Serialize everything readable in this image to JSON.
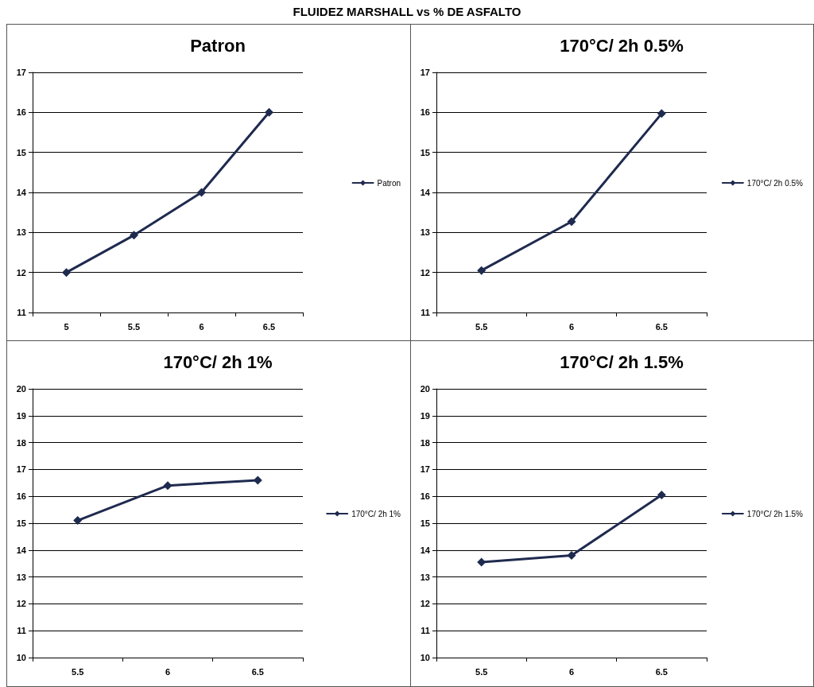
{
  "chart_data": [
    {
      "type": "other",
      "title": "FLUIDEZ MARSHALL vs % DE ASFALTO"
    },
    {
      "type": "line",
      "title": "Patron",
      "categories": [
        "5",
        "5.5",
        "6",
        "6.5"
      ],
      "series": [
        {
          "name": "Patron",
          "color": "#1f2a4f",
          "values": [
            12,
            12.93,
            14,
            16
          ]
        }
      ],
      "ylim": [
        11,
        17
      ],
      "yticks": [
        11,
        12,
        13,
        14,
        15,
        16,
        17
      ],
      "grid": "y",
      "legend": "right",
      "marker": "diamond",
      "line_style": "solid"
    },
    {
      "type": "line",
      "title": "170°C/ 2h 0.5%",
      "categories": [
        "5.5",
        "6",
        "6.5"
      ],
      "series": [
        {
          "name": "170°C/ 2h 0.5%",
          "color": "#1f2a4f",
          "values": [
            12.05,
            13.27,
            15.97
          ]
        }
      ],
      "ylim": [
        11,
        17
      ],
      "yticks": [
        11,
        12,
        13,
        14,
        15,
        16,
        17
      ],
      "grid": "y",
      "legend": "right",
      "marker": "diamond",
      "line_style": "solid"
    },
    {
      "type": "line",
      "title": "170°C/ 2h 1%",
      "categories": [
        "5.5",
        "6",
        "6.5"
      ],
      "series": [
        {
          "name": "170°C/ 2h 1%",
          "color": "#1f2a4f",
          "values": [
            15.1,
            16.4,
            16.6
          ]
        }
      ],
      "ylim": [
        10,
        20
      ],
      "yticks": [
        10,
        11,
        12,
        13,
        14,
        15,
        16,
        17,
        18,
        19,
        20
      ],
      "grid": "y",
      "legend": "right",
      "marker": "diamond",
      "line_style": "solid"
    },
    {
      "type": "line",
      "title": "170°C/ 2h 1.5%",
      "categories": [
        "5.5",
        "6",
        "6.5"
      ],
      "series": [
        {
          "name": "170°C/ 2h 1.5%",
          "color": "#1f2a4f",
          "values": [
            13.55,
            13.8,
            16.05
          ]
        }
      ],
      "ylim": [
        10,
        20
      ],
      "yticks": [
        10,
        11,
        12,
        13,
        14,
        15,
        16,
        17,
        18,
        19,
        20
      ],
      "grid": "y",
      "legend": "right",
      "marker": "diamond",
      "line_style": "solid"
    }
  ]
}
